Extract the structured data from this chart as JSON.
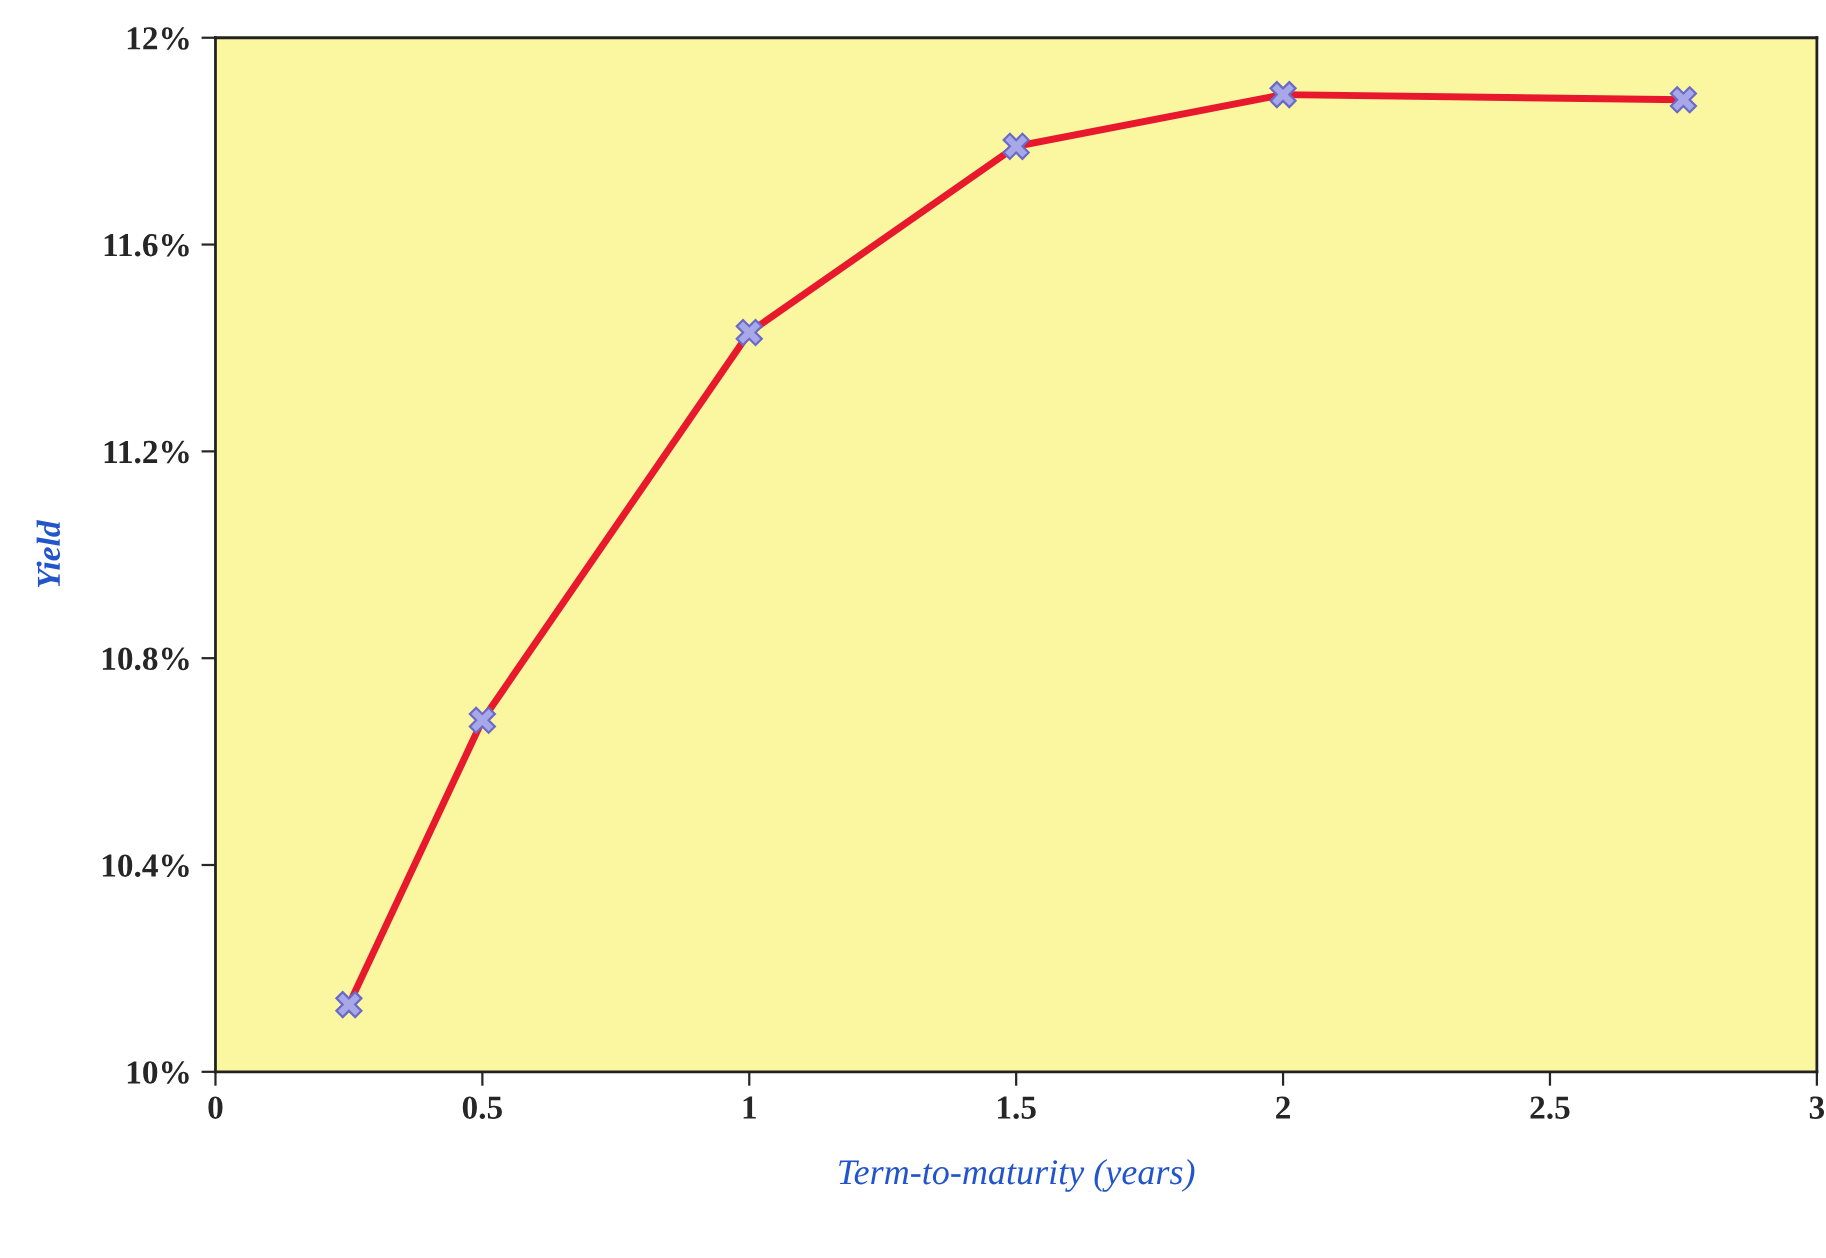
{
  "chart_data": {
    "type": "line",
    "xlabel": "Term-to-maturity (years)",
    "ylabel": "Yield",
    "x": [
      0.25,
      0.5,
      1,
      1.5,
      2,
      2.75
    ],
    "series": [
      {
        "color": "#e8192c",
        "values": [
          10.13,
          10.68,
          11.43,
          11.79,
          11.89,
          11.88
        ]
      }
    ],
    "xlim": [
      0,
      3
    ],
    "xticks": [
      0,
      0.5,
      1,
      1.5,
      2,
      2.5,
      3
    ],
    "ylim": [
      10,
      12
    ],
    "yticks": [
      {
        "value": 10,
        "label": "10%"
      },
      {
        "value": 10.4,
        "label": "10.4%"
      },
      {
        "value": 10.8,
        "label": "10.8%"
      },
      {
        "value": 11.2,
        "label": "11.2%"
      },
      {
        "value": 11.6,
        "label": "11.6%"
      },
      {
        "value": 12,
        "label": "12%"
      }
    ],
    "marker": "cross",
    "line_style": "solid",
    "grid": false,
    "legend": false
  }
}
